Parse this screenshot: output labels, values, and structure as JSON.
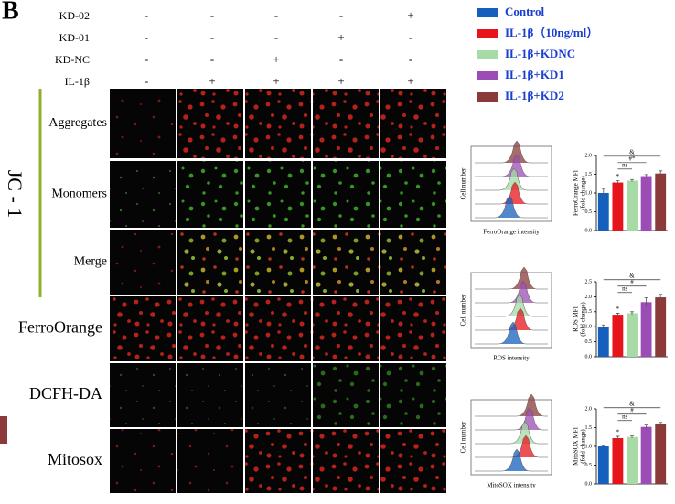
{
  "panel_label": "B",
  "treatments": {
    "rows": [
      {
        "label": "KD-02",
        "signs": [
          "-",
          "-",
          "-",
          "-",
          "+"
        ]
      },
      {
        "label": "KD-01",
        "signs": [
          "-",
          "-",
          "-",
          "+",
          "-"
        ]
      },
      {
        "label": "KD-NC",
        "signs": [
          "-",
          "-",
          "+",
          "-",
          "-"
        ]
      },
      {
        "label": "IL-1β",
        "signs": [
          "-",
          "+",
          "+",
          "+",
          "+"
        ]
      }
    ]
  },
  "legend": [
    {
      "name": "Control",
      "color": "#1560bd"
    },
    {
      "name": "IL-1β（10ng/ml）",
      "color": "#e8141b"
    },
    {
      "name": "IL-1β+KDNC",
      "color": "#a6dba6"
    },
    {
      "name": "IL-1β+KD1",
      "color": "#9b4db5"
    },
    {
      "name": "IL-1β+KD2",
      "color": "#8b3a3a"
    }
  ],
  "jc1_label": "JC - 1",
  "row_labels": [
    "Aggregates",
    "Monomers",
    "Merge",
    "FerroOrange",
    "DCFH-DA",
    "Mitosox"
  ],
  "charts": [
    {
      "flow_y_label": "Cell number",
      "flow_x_label": "FerroOrange intensity",
      "y_label": [
        "FerroOrange MFI",
        "(fold change)"
      ],
      "values": [
        1.0,
        1.28,
        1.33,
        1.45,
        1.52
      ],
      "errors": [
        0.12,
        0.05,
        0.03,
        0.04,
        0.07
      ],
      "ylim": [
        0,
        2
      ],
      "yticks": [
        {
          "value": 0,
          "label": "0.0"
        },
        {
          "value": 0.5,
          "label": "0.5"
        },
        {
          "value": 1,
          "label": "1.0"
        },
        {
          "value": 1.5,
          "label": "1.5"
        },
        {
          "value": 2,
          "label": "2.0"
        }
      ],
      "annotations": [
        "&",
        "#*",
        "ns",
        "*"
      ]
    },
    {
      "flow_y_label": "Cell number",
      "flow_x_label": "ROS intensity",
      "y_label": [
        "ROS MFI",
        "(fold change)"
      ],
      "values": [
        1.0,
        1.4,
        1.45,
        1.82,
        1.98
      ],
      "errors": [
        0.06,
        0.05,
        0.05,
        0.15,
        0.1
      ],
      "ylim": [
        0,
        2.5
      ],
      "yticks": [
        {
          "value": 0,
          "label": "0.0"
        },
        {
          "value": 0.5,
          "label": "0.5"
        },
        {
          "value": 1,
          "label": "1.0"
        },
        {
          "value": 1.5,
          "label": "1.5"
        },
        {
          "value": 2,
          "label": "2.0"
        },
        {
          "value": 2.5,
          "label": "2.5"
        }
      ],
      "annotations": [
        "&",
        "#",
        "ns",
        "*"
      ]
    },
    {
      "flow_y_label": "Cell number",
      "flow_x_label": "MitoSOX intensity",
      "y_label": [
        "MitoSOX MFI",
        "(fold change)"
      ],
      "values": [
        1.0,
        1.22,
        1.25,
        1.52,
        1.6
      ],
      "errors": [
        0.02,
        0.05,
        0.03,
        0.05,
        0.04
      ],
      "ylim": [
        0,
        2
      ],
      "yticks": [
        {
          "value": 0,
          "label": "0.0"
        },
        {
          "value": 0.5,
          "label": "0.5"
        },
        {
          "value": 1,
          "label": "1.0"
        },
        {
          "value": 1.5,
          "label": "1.5"
        },
        {
          "value": 2,
          "label": "2.0"
        }
      ],
      "annotations": [
        "&",
        "#",
        "ns",
        "*"
      ]
    }
  ]
}
